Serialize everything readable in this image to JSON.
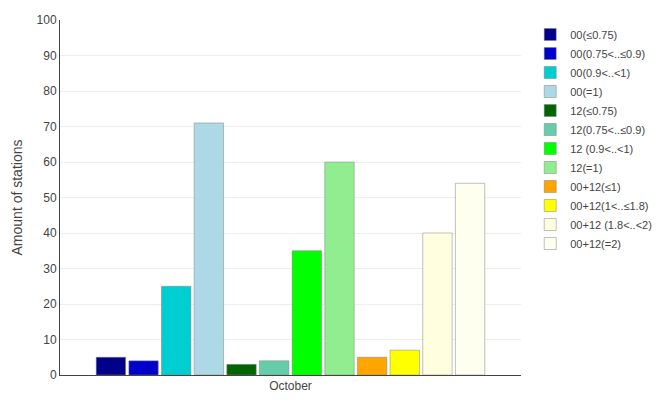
{
  "chart_data": {
    "type": "bar",
    "categories": [
      "October"
    ],
    "series": [
      {
        "name": "00(≤0.75)",
        "color": "#00008B",
        "values": [
          5
        ]
      },
      {
        "name": "00(0.75<..≤0.9)",
        "color": "#0000CD",
        "values": [
          4
        ]
      },
      {
        "name": "00(0.9<..<1)",
        "color": "#00CED1",
        "values": [
          25
        ]
      },
      {
        "name": "00(=1)",
        "color": "#ADD8E6",
        "values": [
          71
        ]
      },
      {
        "name": "12(≤0.75)",
        "color": "#006400",
        "values": [
          3
        ]
      },
      {
        "name": "12(0.75<..≤0.9)",
        "color": "#66CDAA",
        "values": [
          4
        ]
      },
      {
        "name": "12 (0.9<..<1)",
        "color": "#00FF00",
        "values": [
          35
        ]
      },
      {
        "name": "12(=1)",
        "color": "#90EE90",
        "values": [
          60
        ]
      },
      {
        "name": "00+12(≤1)",
        "color": "#FFA500",
        "values": [
          5
        ]
      },
      {
        "name": "00+12(1<..≤1.8)",
        "color": "#FFFF00",
        "values": [
          7
        ]
      },
      {
        "name": "00+12 (1.8<..<2)",
        "color": "#FFFFE0",
        "values": [
          40
        ]
      },
      {
        "name": "00+12(=2)",
        "color": "#FFFFF0",
        "values": [
          54
        ]
      }
    ],
    "ylabel": "Amount of stations",
    "ylim": [
      0,
      100
    ],
    "yticks": [
      0,
      10,
      20,
      30,
      40,
      50,
      60,
      70,
      80,
      90,
      100
    ],
    "grid": true,
    "legend": "upper right"
  }
}
